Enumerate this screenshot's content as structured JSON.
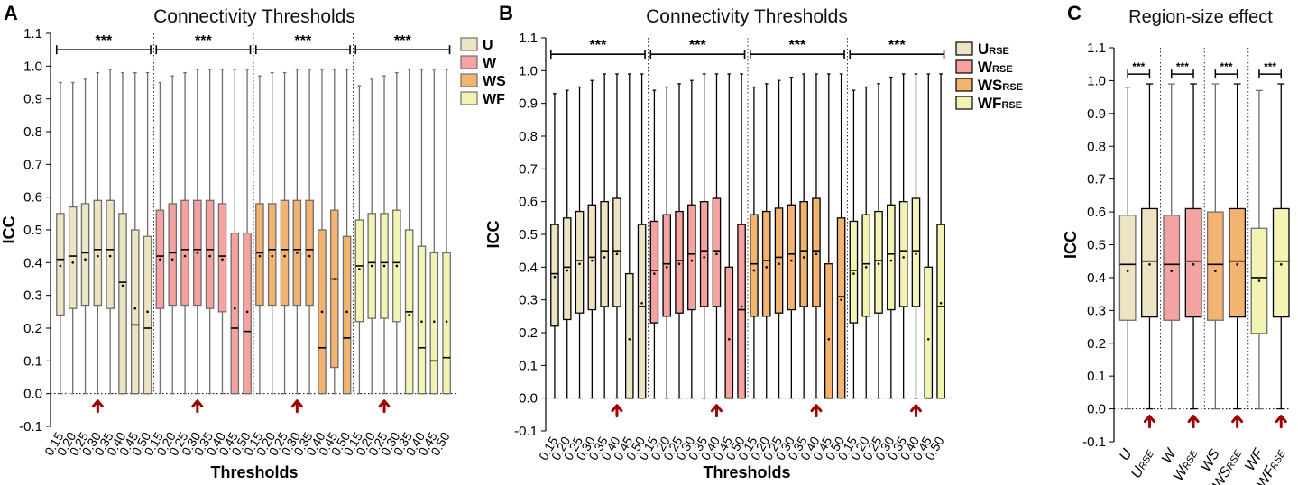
{
  "colors": {
    "U": "#ece4c2",
    "W": "#f4a3a0",
    "WS": "#f3b472",
    "WF": "#f3f4b4",
    "arrow": "#a00000",
    "outline_light": "#6e6e6e",
    "outline_dark": "#000000"
  },
  "chart_data": [
    {
      "panel": "A",
      "type": "boxplot",
      "title": "Connectivity Thresholds",
      "xlabel": "Thresholds",
      "ylabel": "ICC",
      "ylim": [
        -0.1,
        1.1
      ],
      "yticks": [
        "-0.1",
        "0.0",
        "0.1",
        "0.2",
        "0.3",
        "0.4",
        "0.5",
        "0.6",
        "0.7",
        "0.8",
        "0.9",
        "1.0",
        "1.1"
      ],
      "categories": [
        "0.15",
        "0.20",
        "0.25",
        "0.30",
        "0.35",
        "0.40",
        "0.45",
        "0.50"
      ],
      "legend": [
        "U",
        "W",
        "WS",
        "WF"
      ],
      "significance": [
        "***",
        "***",
        "***",
        "***"
      ],
      "arrows_at": [
        "0.30",
        "0.30",
        "0.30",
        "0.25"
      ],
      "series": [
        {
          "name": "U",
          "color_key": "U",
          "whisker_low": [
            0,
            0,
            0,
            0,
            0,
            0,
            0,
            0
          ],
          "whisker_high": [
            0.95,
            0.95,
            0.96,
            0.98,
            0.99,
            0.98,
            0.98,
            0.98
          ],
          "q1": [
            0.24,
            0.26,
            0.27,
            0.27,
            0.26,
            0.0,
            0.0,
            0.0
          ],
          "median": [
            0.41,
            0.42,
            0.43,
            0.44,
            0.44,
            0.34,
            0.21,
            0.2
          ],
          "q3": [
            0.55,
            0.57,
            0.58,
            0.59,
            0.59,
            0.55,
            0.5,
            0.48
          ],
          "mean": [
            0.39,
            0.4,
            0.41,
            0.42,
            0.42,
            0.33,
            0.26,
            0.25
          ]
        },
        {
          "name": "W",
          "color_key": "W",
          "whisker_low": [
            0,
            0,
            0,
            0,
            0,
            0,
            0,
            0
          ],
          "whisker_high": [
            0.95,
            0.97,
            0.98,
            0.99,
            0.99,
            0.99,
            0.99,
            0.99
          ],
          "q1": [
            0.26,
            0.27,
            0.27,
            0.27,
            0.26,
            0.25,
            0.0,
            0.0
          ],
          "median": [
            0.42,
            0.43,
            0.44,
            0.44,
            0.44,
            0.42,
            0.2,
            0.19
          ],
          "q3": [
            0.56,
            0.58,
            0.59,
            0.59,
            0.59,
            0.58,
            0.49,
            0.49
          ],
          "mean": [
            0.41,
            0.41,
            0.42,
            0.43,
            0.42,
            0.41,
            0.26,
            0.25
          ]
        },
        {
          "name": "WS",
          "color_key": "WS",
          "whisker_low": [
            0,
            0,
            0,
            0,
            0,
            0,
            0,
            0
          ],
          "whisker_high": [
            0.97,
            0.98,
            0.98,
            0.99,
            0.99,
            0.99,
            0.99,
            0.99
          ],
          "q1": [
            0.27,
            0.27,
            0.27,
            0.27,
            0.27,
            0.0,
            0.08,
            0.0
          ],
          "median": [
            0.43,
            0.44,
            0.44,
            0.44,
            0.44,
            0.14,
            0.35,
            0.17
          ],
          "q3": [
            0.58,
            0.58,
            0.59,
            0.59,
            0.59,
            0.5,
            0.56,
            0.48
          ],
          "mean": [
            0.42,
            0.42,
            0.42,
            0.43,
            0.42,
            0.25,
            0.35,
            0.25
          ]
        },
        {
          "name": "WF",
          "color_key": "WF",
          "whisker_low": [
            0,
            0,
            0,
            0,
            0,
            0,
            0,
            0
          ],
          "whisker_high": [
            0.94,
            0.96,
            0.97,
            0.98,
            0.99,
            0.99,
            0.99,
            0.99
          ],
          "q1": [
            0.22,
            0.23,
            0.23,
            0.22,
            0.0,
            0.0,
            0.0,
            0.0
          ],
          "median": [
            0.39,
            0.4,
            0.4,
            0.4,
            0.25,
            0.14,
            0.1,
            0.11
          ],
          "q3": [
            0.53,
            0.55,
            0.55,
            0.56,
            0.5,
            0.45,
            0.43,
            0.43
          ],
          "mean": [
            0.38,
            0.39,
            0.39,
            0.39,
            0.24,
            0.22,
            0.22,
            0.22
          ]
        }
      ]
    },
    {
      "panel": "B",
      "type": "boxplot",
      "title": "Connectivity Thresholds",
      "xlabel": "Thresholds",
      "ylabel": "ICC",
      "ylim": [
        -0.1,
        1.1
      ],
      "yticks": [
        "-0.1",
        "0.0",
        "0.1",
        "0.2",
        "0.3",
        "0.4",
        "0.5",
        "0.6",
        "0.7",
        "0.8",
        "0.9",
        "1.0",
        "1.1"
      ],
      "categories": [
        "0.15",
        "0.20",
        "0.25",
        "0.30",
        "0.35",
        "0.40",
        "0.45",
        "0.50"
      ],
      "legend": [
        {
          "base": "U",
          "sub": "RSE"
        },
        {
          "base": "W",
          "sub": "RSE"
        },
        {
          "base": "WS",
          "sub": "RSE"
        },
        {
          "base": "WF",
          "sub": "RSE"
        }
      ],
      "significance": [
        "***",
        "***",
        "***",
        "***"
      ],
      "arrows_at": [
        "0.40",
        "0.40",
        "0.40",
        "0.40"
      ],
      "series": [
        {
          "name": "URSE",
          "color_key": "U",
          "whisker_low": [
            0,
            0,
            0,
            0,
            0,
            0,
            0,
            0
          ],
          "whisker_high": [
            0.93,
            0.94,
            0.95,
            0.97,
            0.99,
            0.99,
            0.99,
            0.99
          ],
          "q1": [
            0.22,
            0.24,
            0.26,
            0.27,
            0.28,
            0.28,
            0.0,
            0.0
          ],
          "median": [
            0.38,
            0.4,
            0.42,
            0.43,
            0.45,
            0.45,
            0.0,
            0.28
          ],
          "q3": [
            0.53,
            0.55,
            0.57,
            0.59,
            0.6,
            0.61,
            0.38,
            0.53
          ],
          "mean": [
            0.37,
            0.39,
            0.41,
            0.42,
            0.43,
            0.44,
            0.18,
            0.29
          ]
        },
        {
          "name": "WRSE",
          "color_key": "W",
          "whisker_low": [
            0,
            0,
            0,
            0,
            0,
            0,
            0,
            0
          ],
          "whisker_high": [
            0.94,
            0.95,
            0.96,
            0.97,
            0.99,
            0.99,
            0.99,
            0.99
          ],
          "q1": [
            0.23,
            0.25,
            0.26,
            0.27,
            0.28,
            0.28,
            0.0,
            0.0
          ],
          "median": [
            0.39,
            0.41,
            0.42,
            0.44,
            0.45,
            0.45,
            0.0,
            0.27
          ],
          "q3": [
            0.54,
            0.56,
            0.57,
            0.59,
            0.6,
            0.61,
            0.4,
            0.53
          ],
          "mean": [
            0.38,
            0.4,
            0.41,
            0.42,
            0.43,
            0.44,
            0.18,
            0.28
          ]
        },
        {
          "name": "WSRSE",
          "color_key": "WS",
          "whisker_low": [
            0,
            0,
            0,
            0,
            0,
            0,
            0,
            0
          ],
          "whisker_high": [
            0.95,
            0.96,
            0.97,
            0.98,
            0.99,
            0.99,
            0.99,
            0.99
          ],
          "q1": [
            0.25,
            0.25,
            0.26,
            0.27,
            0.28,
            0.28,
            0.0,
            0.0
          ],
          "median": [
            0.41,
            0.42,
            0.43,
            0.44,
            0.45,
            0.45,
            0.0,
            0.31
          ],
          "q3": [
            0.56,
            0.57,
            0.58,
            0.59,
            0.6,
            0.61,
            0.41,
            0.55
          ],
          "mean": [
            0.39,
            0.4,
            0.41,
            0.42,
            0.43,
            0.44,
            0.18,
            0.3
          ]
        },
        {
          "name": "WFRSE",
          "color_key": "WF",
          "whisker_low": [
            0,
            0,
            0,
            0,
            0,
            0,
            0,
            0
          ],
          "whisker_high": [
            0.94,
            0.95,
            0.96,
            0.98,
            0.99,
            0.99,
            0.99,
            0.99
          ],
          "q1": [
            0.23,
            0.25,
            0.26,
            0.27,
            0.28,
            0.28,
            0.0,
            0.0
          ],
          "median": [
            0.39,
            0.41,
            0.42,
            0.44,
            0.45,
            0.45,
            0.0,
            0.28
          ],
          "q3": [
            0.54,
            0.56,
            0.57,
            0.59,
            0.6,
            0.61,
            0.4,
            0.53
          ],
          "mean": [
            0.38,
            0.4,
            0.41,
            0.42,
            0.43,
            0.44,
            0.18,
            0.29
          ]
        }
      ]
    },
    {
      "panel": "C",
      "type": "boxplot",
      "title": "Region-size effect",
      "xlabel": "",
      "ylabel": "ICC",
      "ylim": [
        -0.1,
        1.1
      ],
      "yticks": [
        "-0.1",
        "0.0",
        "0.1",
        "0.2",
        "0.3",
        "0.4",
        "0.5",
        "0.6",
        "0.7",
        "0.8",
        "0.9",
        "1.0",
        "1.1"
      ],
      "categories": [
        {
          "base": "U",
          "sub": ""
        },
        {
          "base": "U",
          "sub": "RSE"
        },
        {
          "base": "W",
          "sub": ""
        },
        {
          "base": "W",
          "sub": "RSE"
        },
        {
          "base": "WS",
          "sub": ""
        },
        {
          "base": "WS",
          "sub": "RSE"
        },
        {
          "base": "WF",
          "sub": ""
        },
        {
          "base": "WF",
          "sub": "RSE"
        }
      ],
      "significance": [
        "***",
        "***",
        "***",
        "***"
      ],
      "arrows_at": [
        "URSE",
        "WRSE",
        "WSRSE",
        "WFRSE"
      ],
      "boxes": [
        {
          "name": "U",
          "color_key": "U",
          "whisker_low": 0,
          "whisker_high": 0.98,
          "q1": 0.27,
          "median": 0.44,
          "q3": 0.59,
          "mean": 0.42
        },
        {
          "name": "URSE",
          "color_key": "U",
          "whisker_low": 0,
          "whisker_high": 0.99,
          "q1": 0.28,
          "median": 0.45,
          "q3": 0.61,
          "mean": 0.44
        },
        {
          "name": "W",
          "color_key": "W",
          "whisker_low": 0,
          "whisker_high": 0.99,
          "q1": 0.27,
          "median": 0.44,
          "q3": 0.59,
          "mean": 0.42
        },
        {
          "name": "WRSE",
          "color_key": "W",
          "whisker_low": 0,
          "whisker_high": 0.99,
          "q1": 0.28,
          "median": 0.45,
          "q3": 0.61,
          "mean": 0.44
        },
        {
          "name": "WS",
          "color_key": "WS",
          "whisker_low": 0,
          "whisker_high": 0.99,
          "q1": 0.27,
          "median": 0.44,
          "q3": 0.6,
          "mean": 0.42
        },
        {
          "name": "WSRSE",
          "color_key": "WS",
          "whisker_low": 0,
          "whisker_high": 0.99,
          "q1": 0.28,
          "median": 0.45,
          "q3": 0.61,
          "mean": 0.44
        },
        {
          "name": "WF",
          "color_key": "WF",
          "whisker_low": 0,
          "whisker_high": 0.97,
          "q1": 0.23,
          "median": 0.4,
          "q3": 0.55,
          "mean": 0.39
        },
        {
          "name": "WFRSE",
          "color_key": "WF",
          "whisker_low": 0,
          "whisker_high": 0.99,
          "q1": 0.28,
          "median": 0.45,
          "q3": 0.61,
          "mean": 0.44
        }
      ]
    }
  ]
}
